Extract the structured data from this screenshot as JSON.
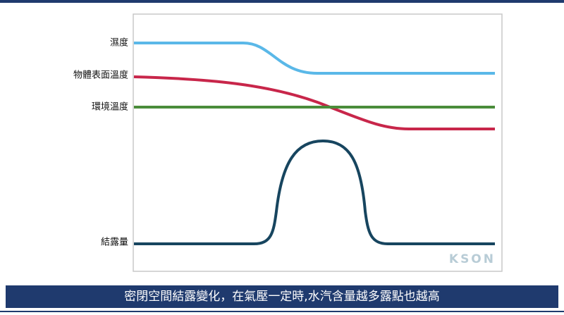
{
  "diagram": {
    "curves": [
      {
        "label": "濕度"
      },
      {
        "label": "物體表面溫度"
      },
      {
        "label": "環境溫度"
      },
      {
        "label": "結露量"
      }
    ],
    "watermark": "KSON"
  },
  "caption": "密閉空間結露變化，在氣壓一定時,水汽含量越多露點也越高"
}
